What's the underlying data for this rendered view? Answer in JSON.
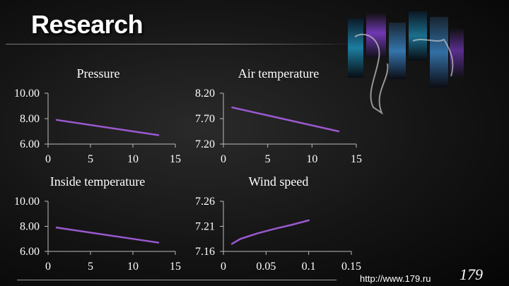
{
  "slide": {
    "title": "Research",
    "footer_url": "http://www.179.ru",
    "page_number": "179"
  },
  "colors": {
    "line": "#9b59d0",
    "text": "#ffffff",
    "axis": "#bbbbbb"
  },
  "chart_data": [
    {
      "type": "line",
      "title": "Pressure",
      "xlim": [
        0,
        15
      ],
      "ylim": [
        6.0,
        10.0
      ],
      "xticks": [
        "0",
        "5",
        "10",
        "15"
      ],
      "yticks": [
        "6.00",
        "8.00",
        "10.00"
      ],
      "series": [
        {
          "x": [
            1,
            13
          ],
          "y": [
            7.9,
            6.7
          ]
        }
      ]
    },
    {
      "type": "line",
      "title": "Air temperature",
      "xlim": [
        0,
        15
      ],
      "ylim": [
        7.2,
        8.2
      ],
      "xticks": [
        "0",
        "5",
        "10",
        "15"
      ],
      "yticks": [
        "7.20",
        "7.70",
        "8.20"
      ],
      "series": [
        {
          "x": [
            1,
            13
          ],
          "y": [
            7.92,
            7.45
          ]
        }
      ]
    },
    {
      "type": "line",
      "title": "Inside temperature",
      "xlim": [
        0,
        15
      ],
      "ylim": [
        6.0,
        10.0
      ],
      "xticks": [
        "0",
        "5",
        "10",
        "15"
      ],
      "yticks": [
        "6.00",
        "8.00",
        "10.00"
      ],
      "series": [
        {
          "x": [
            1,
            13
          ],
          "y": [
            7.9,
            6.7
          ]
        }
      ]
    },
    {
      "type": "line",
      "title": "Wind speed",
      "xlim": [
        0,
        0.15
      ],
      "ylim": [
        7.16,
        7.26
      ],
      "xticks": [
        "0",
        "0.05",
        "0.1",
        "0.15"
      ],
      "yticks": [
        "7.16",
        "7.21",
        "7.26"
      ],
      "series": [
        {
          "x": [
            0.01,
            0.02,
            0.04,
            0.06,
            0.08,
            0.1
          ],
          "y": [
            7.175,
            7.185,
            7.196,
            7.205,
            7.213,
            7.222
          ]
        }
      ]
    }
  ]
}
